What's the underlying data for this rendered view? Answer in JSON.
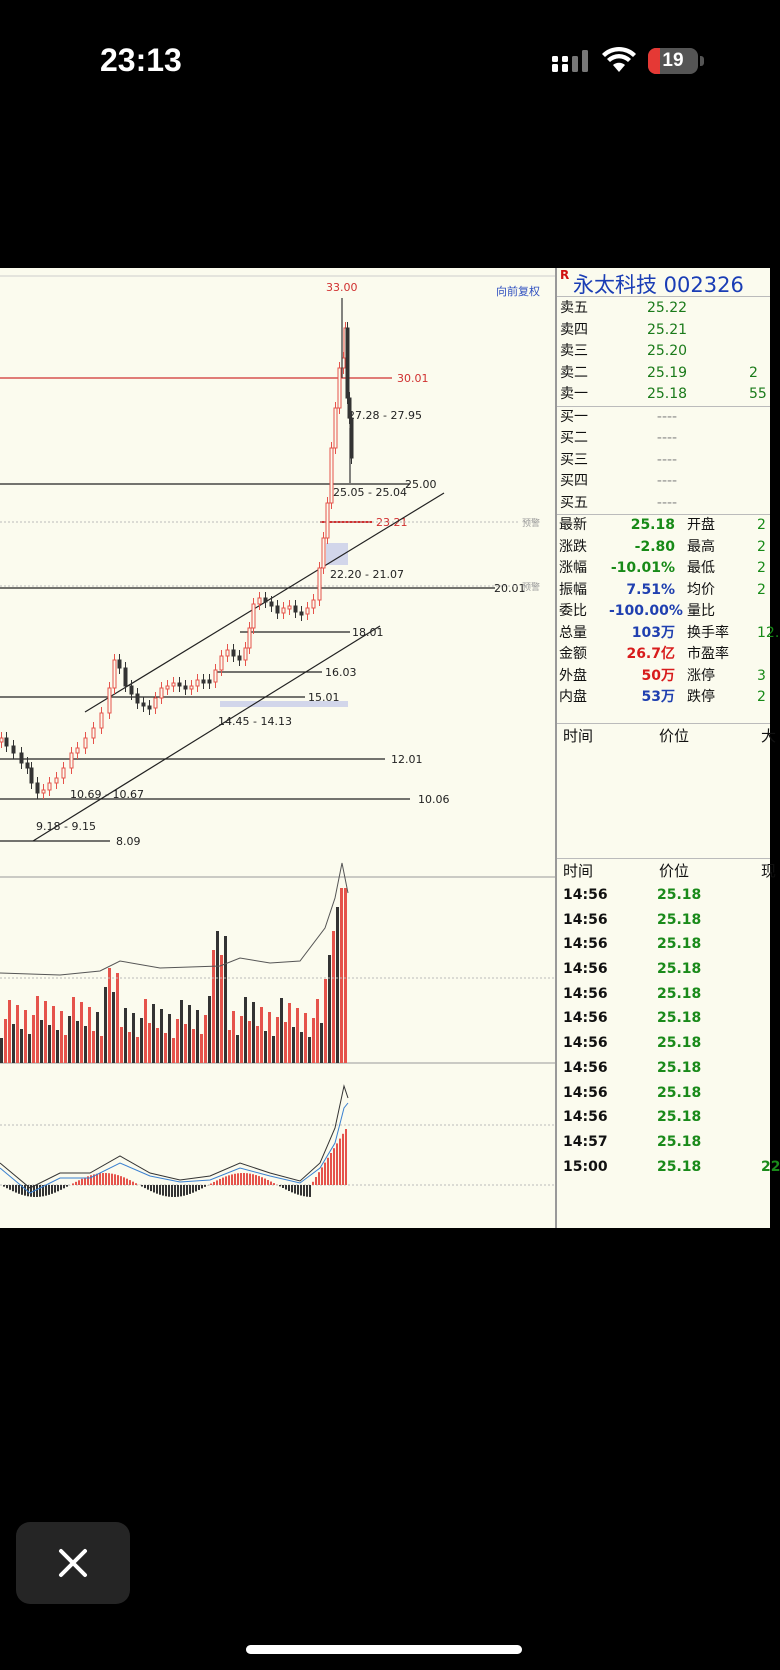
{
  "status_bar": {
    "time": "23:13",
    "battery": "19"
  },
  "chart": {
    "rights_label": "向前复权",
    "price_levels": [
      "33.00",
      "30.01",
      "27.28 - 27.95",
      "25.00",
      "25.05 - 25.04",
      "23.21",
      "22.20 - 21.07",
      "20.01",
      "18.01",
      "16.03",
      "15.01",
      "14.45 - 14.13",
      "12.01",
      "10.69 - 10.67",
      "10.06",
      "9.18 - 9.15",
      "8.09"
    ],
    "alert_label": "预警"
  },
  "stock": {
    "badge": "R",
    "name_code": "永太科技  002326"
  },
  "orderbook": {
    "asks": [
      {
        "label": "卖五",
        "price": "25.22",
        "extra": ""
      },
      {
        "label": "卖四",
        "price": "25.21",
        "extra": ""
      },
      {
        "label": "卖三",
        "price": "25.20",
        "extra": ""
      },
      {
        "label": "卖二",
        "price": "25.19",
        "extra": "2"
      },
      {
        "label": "卖一",
        "price": "25.18",
        "extra": "55"
      }
    ],
    "bids": [
      {
        "label": "买一",
        "price": "----"
      },
      {
        "label": "买二",
        "price": "----"
      },
      {
        "label": "买三",
        "price": "----"
      },
      {
        "label": "买四",
        "price": "----"
      },
      {
        "label": "买五",
        "price": "----"
      }
    ]
  },
  "quote": [
    {
      "l1": "最新",
      "v1": "25.18",
      "c1": "g",
      "l2": "开盘",
      "v2": "2"
    },
    {
      "l1": "涨跌",
      "v1": "-2.80",
      "c1": "g",
      "l2": "最高",
      "v2": "2"
    },
    {
      "l1": "涨幅",
      "v1": "-10.01%",
      "c1": "g",
      "l2": "最低",
      "v2": "2"
    },
    {
      "l1": "振幅",
      "v1": "7.51%",
      "c1": "bl",
      "l2": "均价",
      "v2": "2"
    },
    {
      "l1": "委比",
      "v1": "-100.00%",
      "c1": "bl",
      "l2": "量比",
      "v2": ""
    },
    {
      "l1": "总量",
      "v1": "103万",
      "c1": "bl",
      "l2": "换手率",
      "v2": "12."
    },
    {
      "l1": "金额",
      "v1": "26.7亿",
      "c1": "rd",
      "l2": "市盈率",
      "v2": ""
    },
    {
      "l1": "外盘",
      "v1": "50万",
      "c1": "rd",
      "l2": "涨停",
      "v2": "3"
    },
    {
      "l1": "内盘",
      "v1": "53万",
      "c1": "bl",
      "l2": "跌停",
      "v2": "2"
    }
  ],
  "big_header": {
    "time": "时间",
    "price": "价位",
    "big": "大"
  },
  "tick_header": {
    "time": "时间",
    "price": "价位",
    "vol": "现"
  },
  "ticks": [
    {
      "time": "14:56",
      "price": "25.18",
      "vol": ""
    },
    {
      "time": "14:56",
      "price": "25.18",
      "vol": ""
    },
    {
      "time": "14:56",
      "price": "25.18",
      "vol": ""
    },
    {
      "time": "14:56",
      "price": "25.18",
      "vol": ""
    },
    {
      "time": "14:56",
      "price": "25.18",
      "vol": ""
    },
    {
      "time": "14:56",
      "price": "25.18",
      "vol": ""
    },
    {
      "time": "14:56",
      "price": "25.18",
      "vol": ""
    },
    {
      "time": "14:56",
      "price": "25.18",
      "vol": ""
    },
    {
      "time": "14:56",
      "price": "25.18",
      "vol": ""
    },
    {
      "time": "14:56",
      "price": "25.18",
      "vol": ""
    },
    {
      "time": "14:57",
      "price": "25.18",
      "vol": ""
    },
    {
      "time": "15:00",
      "price": "25.18",
      "vol": "22"
    }
  ]
}
